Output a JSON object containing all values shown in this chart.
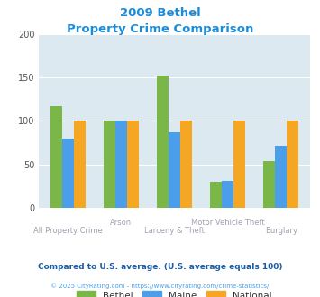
{
  "title_line1": "2009 Bethel",
  "title_line2": "Property Crime Comparison",
  "categories": [
    "All Property Crime",
    "Arson",
    "Larceny & Theft",
    "Motor Vehicle Theft",
    "Burglary"
  ],
  "cat_labels_top": [
    "",
    "Arson",
    "",
    "Motor Vehicle Theft",
    ""
  ],
  "cat_labels_bot": [
    "All Property Crime",
    "",
    "Larceny & Theft",
    "",
    "Burglary"
  ],
  "bethel": [
    117,
    100,
    152,
    30,
    54
  ],
  "maine": [
    80,
    100,
    87,
    31,
    71
  ],
  "national": [
    100,
    100,
    100,
    100,
    100
  ],
  "bethel_color": "#7ab648",
  "maine_color": "#4b9fea",
  "national_color": "#f5a623",
  "ylim": [
    0,
    200
  ],
  "yticks": [
    0,
    50,
    100,
    150,
    200
  ],
  "plot_bg": "#dce9f0",
  "fig_bg": "#ffffff",
  "title_color": "#1a8cdb",
  "xlabel_color": "#a0a0b0",
  "legend_label_color": "#333333",
  "footer_note": "Compared to U.S. average. (U.S. average equals 100)",
  "footer_color": "#1a5ca8",
  "copyright": "© 2025 CityRating.com - https://www.cityrating.com/crime-statistics/",
  "copyright_color": "#4b9fea",
  "legend_labels": [
    "Bethel",
    "Maine",
    "National"
  ],
  "bar_width": 0.22
}
